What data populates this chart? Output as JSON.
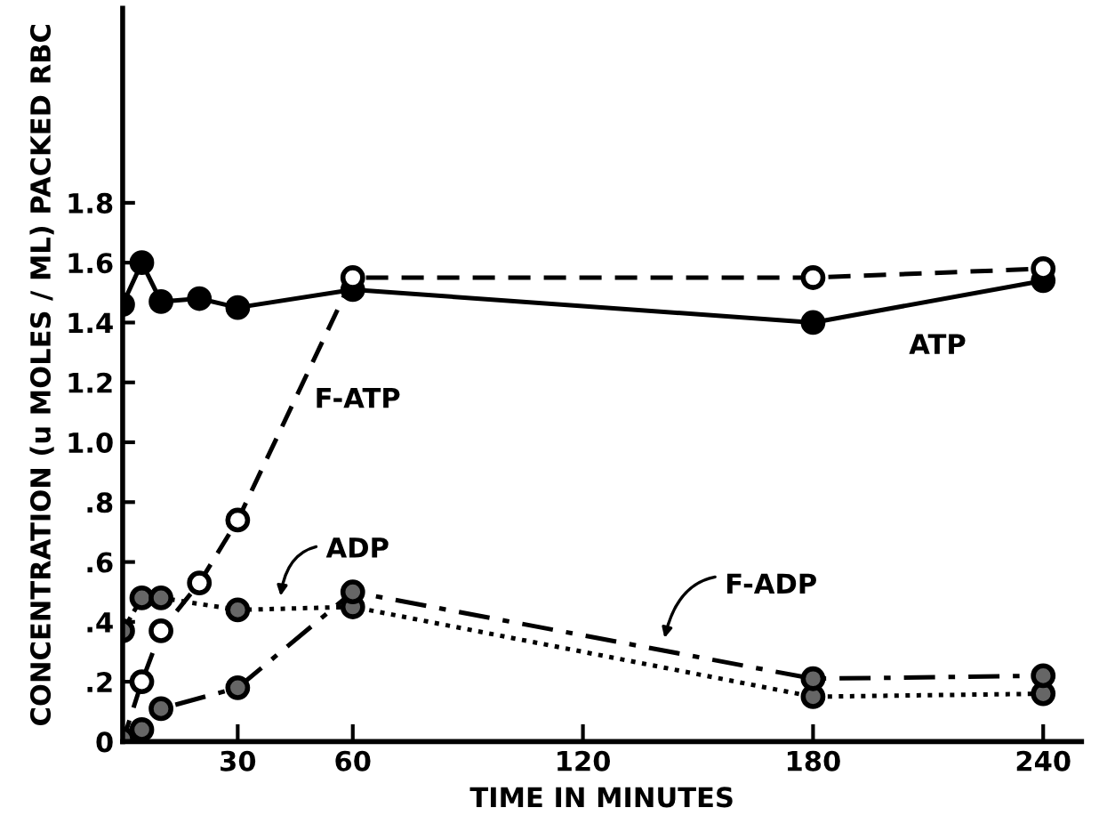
{
  "chart_data": {
    "type": "line",
    "xlabel": "TIME IN MINUTES",
    "ylabel": "CONCENTRATION (u MOLES / ML) PACKED RBC",
    "xlim": [
      0,
      250
    ],
    "ylim": [
      0,
      2.45
    ],
    "xticks": [
      30,
      60,
      120,
      180,
      240
    ],
    "yticks": [
      {
        "value": 0,
        "label": "0"
      },
      {
        "value": 0.2,
        "label": ".2"
      },
      {
        "value": 0.4,
        "label": ".4"
      },
      {
        "value": 0.6,
        "label": ".6"
      },
      {
        "value": 0.8,
        "label": ".8"
      },
      {
        "value": 1.0,
        "label": "1.0"
      },
      {
        "value": 1.2,
        "label": "1.2"
      },
      {
        "value": 1.4,
        "label": "1.4"
      },
      {
        "value": 1.6,
        "label": "1.6"
      },
      {
        "value": 1.8,
        "label": "1.8"
      }
    ],
    "grid": false,
    "legend": false,
    "marker": "circle",
    "series": [
      {
        "name": "ATP",
        "color": "#000000",
        "line_style": "solid",
        "x": [
          0,
          5,
          10,
          20,
          30,
          60,
          180,
          240
        ],
        "values": [
          1.46,
          1.6,
          1.47,
          1.48,
          1.45,
          1.51,
          1.4,
          1.54
        ]
      },
      {
        "name": "F-ATP",
        "color": "#000000",
        "line_style": "dashed",
        "x": [
          0,
          5,
          10,
          20,
          30,
          60,
          180,
          240
        ],
        "values": [
          0.0,
          0.2,
          0.37,
          0.53,
          0.74,
          1.55,
          1.55,
          1.58
        ]
      },
      {
        "name": "ADP",
        "color": "#000000",
        "line_style": "dotted",
        "x": [
          0,
          5,
          10,
          30,
          60,
          180,
          240
        ],
        "values": [
          0.37,
          0.48,
          0.48,
          0.44,
          0.45,
          0.15,
          0.16
        ]
      },
      {
        "name": "F-ADP",
        "color": "#000000",
        "line_style": "dashdot",
        "x": [
          0,
          5,
          10,
          30,
          60,
          180,
          240
        ],
        "values": [
          0.01,
          0.04,
          0.11,
          0.18,
          0.5,
          0.21,
          0.22
        ]
      }
    ]
  }
}
